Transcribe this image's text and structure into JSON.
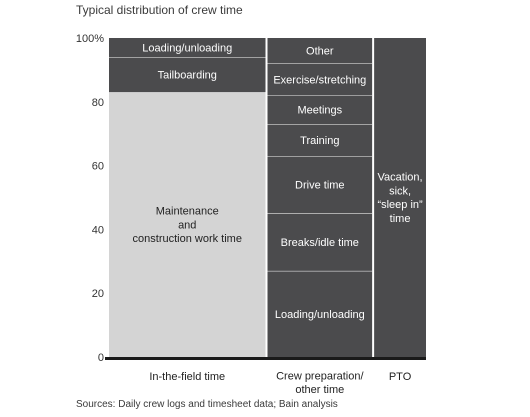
{
  "chart_data": {
    "type": "mekko",
    "title": "Typical distribution of crew time",
    "ylim": [
      0,
      100
    ],
    "y_ticks": [
      "0",
      "20",
      "40",
      "60",
      "80",
      "100%"
    ],
    "x_categories": [
      {
        "label": "In-the-field time",
        "width": 55
      },
      {
        "label": "Crew preparation/ other time",
        "width": 37
      },
      {
        "label": "PTO",
        "width": 18
      }
    ],
    "columns": [
      {
        "segments": [
          {
            "label": "Maintenance and construction work time",
            "value": 83,
            "tone": "light"
          },
          {
            "label": "Tailboarding",
            "value": 11,
            "tone": "dark"
          },
          {
            "label": "Loading/unloading",
            "value": 6,
            "tone": "dark"
          }
        ]
      },
      {
        "segments": [
          {
            "label": "Loading/unloading",
            "value": 27,
            "tone": "dark"
          },
          {
            "label": "Breaks/idle time",
            "value": 18,
            "tone": "dark"
          },
          {
            "label": "Drive time",
            "value": 18,
            "tone": "dark"
          },
          {
            "label": "Training",
            "value": 10,
            "tone": "dark"
          },
          {
            "label": "Meetings",
            "value": 9,
            "tone": "dark"
          },
          {
            "label": "Exercise/stretching",
            "value": 10,
            "tone": "dark"
          },
          {
            "label": "Other",
            "value": 8,
            "tone": "dark"
          }
        ]
      },
      {
        "segments": [
          {
            "label": "Vacation, sick, “sleep in” time",
            "value": 100,
            "tone": "dark"
          }
        ]
      }
    ],
    "colors": {
      "dark": "#4b4b4d",
      "light": "#d4d4d4",
      "axis": "#1a1a1a",
      "text_on_dark": "#ffffff",
      "text_on_light": "#222222"
    }
  },
  "source": "Sources: Daily crew logs and timesheet data; Bain analysis"
}
